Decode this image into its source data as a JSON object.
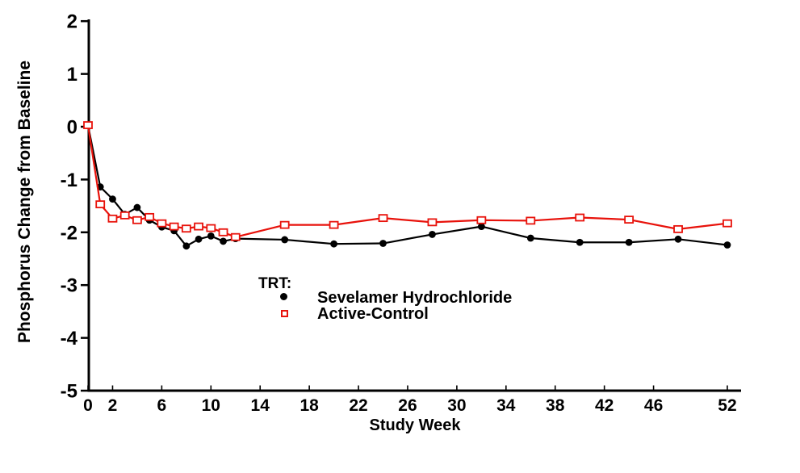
{
  "chart_data": {
    "type": "line",
    "title": "",
    "xlabel": "Study Week",
    "ylabel": "Phosphorus Change from Baseline",
    "xlim": [
      0,
      53
    ],
    "ylim": [
      -5,
      2
    ],
    "grid": false,
    "x_ticks": [
      0,
      2,
      6,
      10,
      14,
      18,
      22,
      26,
      30,
      34,
      38,
      42,
      46,
      52
    ],
    "y_ticks": [
      2,
      1,
      0,
      -1,
      -2,
      -3,
      -4,
      -5
    ],
    "legend_title": "TRT:",
    "legend_position": "inside-lower-left",
    "x": [
      0,
      1,
      2,
      3,
      4,
      5,
      6,
      7,
      8,
      9,
      10,
      11,
      12,
      16,
      20,
      24,
      28,
      32,
      36,
      40,
      44,
      48,
      52
    ],
    "series": [
      {
        "name": "Sevelamer Hydrochloride",
        "marker": "filled-circle",
        "color": "#000000",
        "values": [
          0.03,
          -1.14,
          -1.37,
          -1.66,
          -1.53,
          -1.77,
          -1.9,
          -1.97,
          -2.26,
          -2.13,
          -2.07,
          -2.17,
          -2.12,
          -2.14,
          -2.22,
          -2.21,
          -2.04,
          -1.89,
          -2.11,
          -2.19,
          -2.19,
          -2.13,
          -2.24
        ]
      },
      {
        "name": "Active-Control",
        "marker": "open-square",
        "color": "#e8120b",
        "values": [
          0.03,
          -1.47,
          -1.74,
          -1.68,
          -1.77,
          -1.71,
          -1.83,
          -1.89,
          -1.93,
          -1.89,
          -1.92,
          -2.0,
          -2.09,
          -1.86,
          -1.86,
          -1.73,
          -1.81,
          -1.77,
          -1.78,
          -1.72,
          -1.76,
          -1.94,
          -1.83
        ]
      }
    ]
  }
}
